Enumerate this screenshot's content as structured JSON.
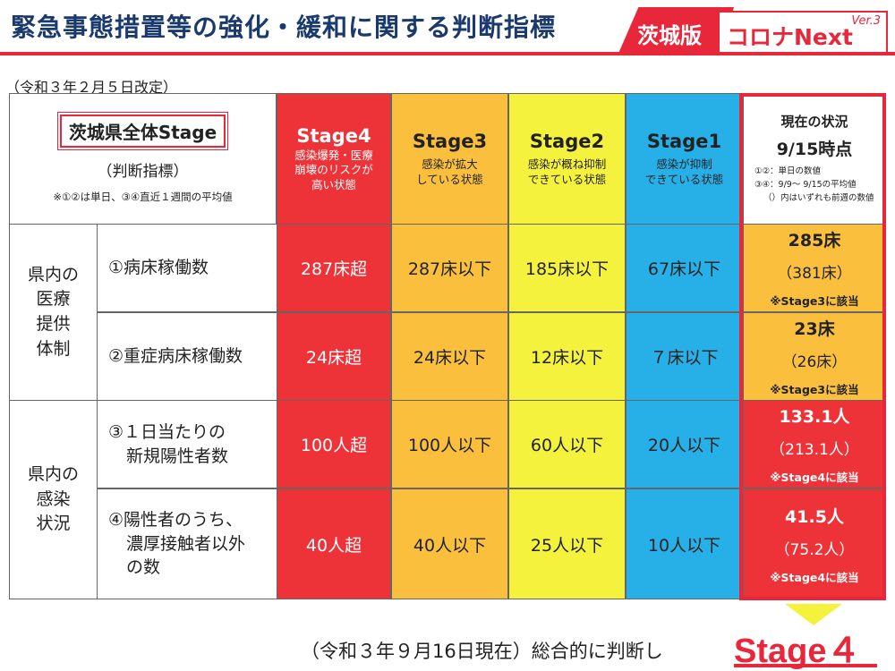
{
  "header": {
    "title": "緊急事態措置等の強化・緩和に関する判断指標",
    "brand_left": "茨城版",
    "brand_right": "コロナNext",
    "brand_version": "Ver.3"
  },
  "revision": "（令和３年２月５日改定）",
  "table": {
    "overall_label": "茨城県全体Stage",
    "overall_sub": "（判断指標）",
    "overall_note": "※①②は単日、③④直近１週間の平均値",
    "stages": [
      {
        "name": "Stage4",
        "desc": "感染爆発・医療\n崩壊のリスクが\n高い状態"
      },
      {
        "name": "Stage3",
        "desc": "感染が拡大\nしている状態"
      },
      {
        "name": "Stage2",
        "desc": "感染が概ね抑制\nできている状態"
      },
      {
        "name": "Stage1",
        "desc": "感染が抑制\nできている状態"
      }
    ],
    "current": {
      "title": "現在の状況",
      "date": "9/15時点",
      "note1": "①②：単日の数値",
      "note2": "③④：9/9～ 9/15の平均値",
      "note3": "（）内はいずれも前週の数値"
    },
    "categories": [
      {
        "label": "県内の\n医療\n提供\n体制"
      },
      {
        "label": "県内の\n感染\n状況"
      }
    ],
    "rows": [
      {
        "indicator": "①病床稼働数",
        "values": [
          "287床超",
          "287床以下",
          "185床以下",
          "67床以下"
        ],
        "current_value": "285床",
        "current_prev": "（381床）",
        "current_note": "※Stage3に該当"
      },
      {
        "indicator": "②重症病床稼働数",
        "values": [
          "24床超",
          "24床以下",
          "12床以下",
          "７床以下"
        ],
        "current_value": "23床",
        "current_prev": "（26床）",
        "current_note": "※Stage3に該当"
      },
      {
        "indicator_line1": "③１日当たりの",
        "indicator_line2": "新規陽性者数",
        "values": [
          "100人超",
          "100人以下",
          "60人以下",
          "20人以下"
        ],
        "current_value": "133.1人",
        "current_prev": "（213.1人）",
        "current_note": "※Stage4に該当"
      },
      {
        "indicator_line1": "④陽性者のうち、",
        "indicator_line2": "濃厚接触者以外",
        "indicator_line3": "の数",
        "values": [
          "40人超",
          "40人以下",
          "25人以下",
          "10人以下"
        ],
        "current_value": "41.5人",
        "current_prev": "（75.2人）",
        "current_note": "※Stage4に該当"
      }
    ]
  },
  "conclusion": {
    "text": "（令和３年９月16日現在）総合的に判断し",
    "stage": "Stage４"
  },
  "colors": {
    "stage4": "#ee3338",
    "stage3": "#f9bf3d",
    "stage2": "#f5f23e",
    "stage1": "#27b0e8",
    "accent": "#e8283a",
    "title": "#1a3a6e"
  }
}
